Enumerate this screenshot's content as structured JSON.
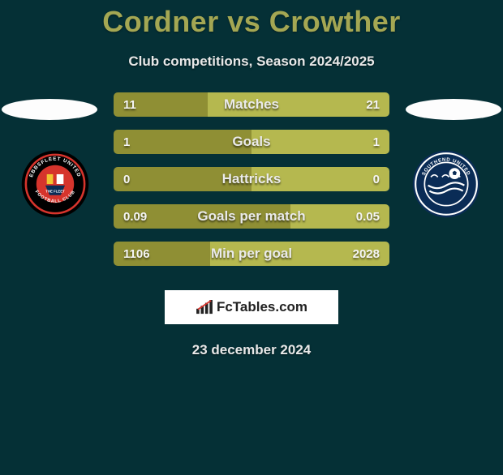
{
  "title": "Cordner vs Crowther",
  "subtitle": "Club competitions, Season 2024/2025",
  "date": "23 december 2024",
  "brand": "FcTables.com",
  "colors": {
    "background": "#053036",
    "title": "#a4a753",
    "bar_olive_dark": "#8f8f34",
    "bar_olive_light": "#b5b84f",
    "ellipse": "#fdfdfd",
    "text": "#e8e8e8"
  },
  "bars": [
    {
      "label": "Matches",
      "left_val": "11",
      "right_val": "21",
      "left_pct": 34,
      "right_pct": 66
    },
    {
      "label": "Goals",
      "left_val": "1",
      "right_val": "1",
      "left_pct": 50,
      "right_pct": 50
    },
    {
      "label": "Hattricks",
      "left_val": "0",
      "right_val": "0",
      "left_pct": 50,
      "right_pct": 50
    },
    {
      "label": "Goals per match",
      "left_val": "0.09",
      "right_val": "0.05",
      "left_pct": 64,
      "right_pct": 36
    },
    {
      "label": "Min per goal",
      "left_val": "1106",
      "right_val": "2028",
      "left_pct": 35,
      "right_pct": 65
    }
  ],
  "crests": {
    "left": {
      "outer": "#000000",
      "ring": "#d6342c",
      "inner": "#d6342c",
      "text_top": "EBBSFLEET UNITED",
      "text_bottom": "FOOTBALL CLUB",
      "accent1": "#f2c531",
      "accent2": "#ffffff"
    },
    "right": {
      "outer": "#0a2c56",
      "ring": "#ffffff",
      "inner": "#0a2c56",
      "text_top": "SOUTHEND UNITED",
      "ball": "#ffffff",
      "wave": "#ffffff"
    }
  }
}
